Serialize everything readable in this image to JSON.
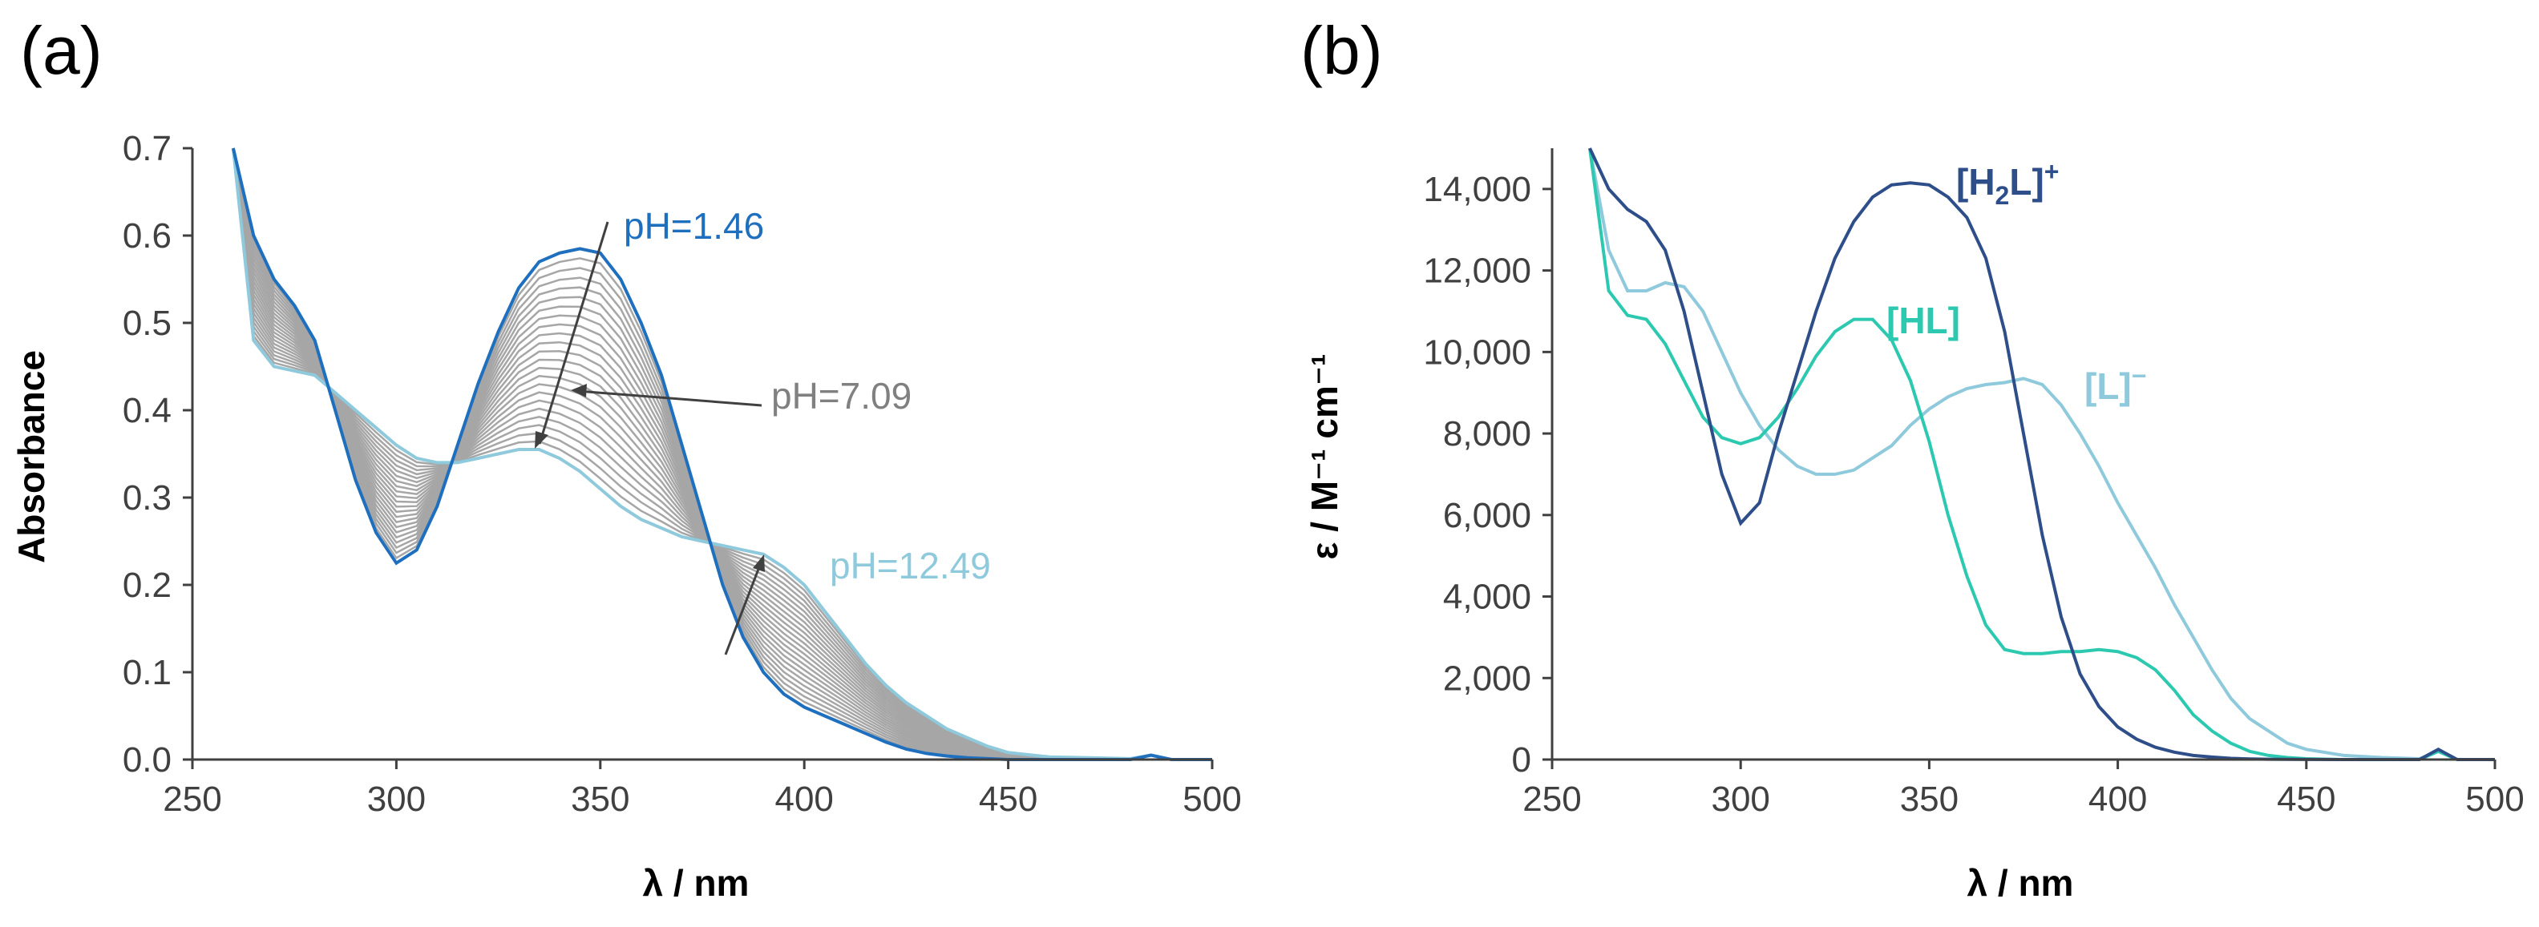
{
  "colors": {
    "ph146": "#1f6fbf",
    "ph1249": "#8ec9dc",
    "grey": "#a6a6a6",
    "greyText": "#808080",
    "h2l": "#2e4e8a",
    "hl": "#2cc9b0",
    "l": "#8ec9dc",
    "axis": "#404040"
  },
  "chart_data": [
    {
      "panel_label": "(a)",
      "type": "line",
      "title": "",
      "xlabel": "λ / nm",
      "ylabel": "Absorbance",
      "xlim": [
        250,
        500
      ],
      "ylim": [
        0,
        0.7
      ],
      "x_ticks": [
        250,
        300,
        350,
        400,
        450,
        500
      ],
      "x_tick_labels": [
        "250",
        "300",
        "350",
        "400",
        "450",
        "500"
      ],
      "y_ticks": [
        0,
        0.1,
        0.2,
        0.3,
        0.4,
        0.5,
        0.6,
        0.7
      ],
      "y_tick_labels": [
        "0.0",
        "0.1",
        "0.2",
        "0.3",
        "0.4",
        "0.5",
        "0.6",
        "0.7"
      ],
      "grid": false,
      "annotations": [
        {
          "text": "pH=1.46",
          "color": "#1f6fbf"
        },
        {
          "text": "pH=7.09",
          "color": "#808080"
        },
        {
          "text": "pH=12.49",
          "color": "#8ec9dc"
        }
      ],
      "series": [
        {
          "name": "pH=1.46",
          "x": [
            260,
            265,
            270,
            275,
            280,
            285,
            290,
            295,
            300,
            305,
            310,
            315,
            320,
            325,
            330,
            335,
            340,
            345,
            350,
            355,
            360,
            365,
            370,
            375,
            380,
            385,
            390,
            395,
            400,
            405,
            410,
            415,
            420,
            425,
            430,
            435,
            440,
            445,
            450,
            460,
            470,
            480,
            485,
            490,
            500
          ],
          "values": [
            0.7,
            0.6,
            0.55,
            0.52,
            0.48,
            0.4,
            0.32,
            0.26,
            0.225,
            0.24,
            0.29,
            0.36,
            0.43,
            0.49,
            0.54,
            0.57,
            0.58,
            0.585,
            0.58,
            0.55,
            0.5,
            0.44,
            0.36,
            0.28,
            0.2,
            0.14,
            0.1,
            0.075,
            0.06,
            0.05,
            0.04,
            0.03,
            0.02,
            0.012,
            0.007,
            0.004,
            0.002,
            0.001,
            0,
            0,
            0,
            0,
            0.005,
            0,
            0
          ]
        },
        {
          "name": "pH=12.49",
          "x": [
            260,
            265,
            270,
            275,
            280,
            285,
            290,
            295,
            300,
            305,
            310,
            315,
            320,
            325,
            330,
            335,
            340,
            345,
            350,
            355,
            360,
            365,
            370,
            375,
            380,
            385,
            390,
            395,
            400,
            405,
            410,
            415,
            420,
            425,
            430,
            435,
            440,
            445,
            450,
            460,
            470,
            480,
            485,
            490,
            500
          ],
          "values": [
            0.7,
            0.48,
            0.45,
            0.445,
            0.44,
            0.42,
            0.4,
            0.38,
            0.36,
            0.345,
            0.34,
            0.34,
            0.345,
            0.35,
            0.355,
            0.355,
            0.345,
            0.33,
            0.31,
            0.29,
            0.275,
            0.265,
            0.255,
            0.25,
            0.245,
            0.24,
            0.235,
            0.22,
            0.2,
            0.17,
            0.14,
            0.11,
            0.085,
            0.065,
            0.05,
            0.035,
            0.025,
            0.015,
            0.008,
            0.003,
            0.002,
            0.001,
            0.005,
            0,
            0
          ]
        }
      ],
      "intermediate_curves": {
        "name": "intermediate pH spectra",
        "count": 22,
        "color": "#a6a6a6"
      }
    },
    {
      "panel_label": "(b)",
      "type": "line",
      "title": "",
      "xlabel": "λ / nm",
      "ylabel": "ε / M⁻¹ cm⁻¹",
      "xlim": [
        250,
        500
      ],
      "ylim": [
        0,
        15000
      ],
      "x_ticks": [
        250,
        300,
        350,
        400,
        450,
        500
      ],
      "x_tick_labels": [
        "250",
        "300",
        "350",
        "400",
        "450",
        "500"
      ],
      "y_ticks": [
        0,
        2000,
        4000,
        6000,
        8000,
        10000,
        12000,
        14000
      ],
      "y_tick_labels": [
        "0",
        "2,000",
        "4,000",
        "6,000",
        "8,000",
        "10,000",
        "12,000",
        "14,000"
      ],
      "grid": false,
      "series": [
        {
          "name": "[H2L]+",
          "label_main": "[H",
          "label_sub": "2",
          "label_tail": "L]",
          "label_sup": "+",
          "color": "#2e4e8a",
          "x": [
            260,
            265,
            270,
            275,
            280,
            285,
            290,
            295,
            300,
            305,
            310,
            315,
            320,
            325,
            330,
            335,
            340,
            345,
            350,
            355,
            360,
            365,
            370,
            375,
            380,
            385,
            390,
            395,
            400,
            405,
            410,
            415,
            420,
            425,
            430,
            435,
            440,
            445,
            450,
            460,
            470,
            480,
            485,
            490,
            500
          ],
          "values": [
            15000,
            14000,
            13500,
            13200,
            12500,
            11000,
            9000,
            7000,
            5800,
            6300,
            8000,
            9500,
            11000,
            12300,
            13200,
            13800,
            14100,
            14150,
            14100,
            13800,
            13300,
            12300,
            10500,
            8000,
            5500,
            3500,
            2100,
            1300,
            800,
            500,
            300,
            180,
            100,
            60,
            30,
            15,
            8,
            4,
            2,
            0,
            0,
            0,
            250,
            0,
            0
          ]
        },
        {
          "name": "[HL]",
          "label_main": "[HL]",
          "color": "#2cc9b0",
          "x": [
            260,
            265,
            270,
            275,
            280,
            285,
            290,
            295,
            300,
            305,
            310,
            315,
            320,
            325,
            330,
            335,
            340,
            345,
            350,
            355,
            360,
            365,
            370,
            375,
            380,
            385,
            390,
            395,
            400,
            405,
            410,
            415,
            420,
            425,
            430,
            435,
            440,
            445,
            450,
            460,
            470,
            480,
            485,
            490,
            500
          ],
          "values": [
            15000,
            11500,
            10900,
            10800,
            10200,
            9300,
            8400,
            7900,
            7750,
            7900,
            8400,
            9100,
            9900,
            10500,
            10800,
            10800,
            10300,
            9300,
            7800,
            6000,
            4500,
            3300,
            2700,
            2600,
            2600,
            2650,
            2650,
            2700,
            2650,
            2500,
            2200,
            1700,
            1100,
            700,
            400,
            200,
            100,
            50,
            20,
            0,
            0,
            0,
            200,
            0,
            0
          ]
        },
        {
          "name": "[L]−",
          "label_main": "[L]",
          "label_sup": "−",
          "color": "#8ec9dc",
          "x": [
            260,
            265,
            270,
            275,
            280,
            285,
            290,
            295,
            300,
            305,
            310,
            315,
            320,
            325,
            330,
            335,
            340,
            345,
            350,
            355,
            360,
            365,
            370,
            375,
            380,
            385,
            390,
            395,
            400,
            405,
            410,
            415,
            420,
            425,
            430,
            435,
            440,
            445,
            450,
            460,
            470,
            480,
            485,
            490,
            500
          ],
          "values": [
            15000,
            12500,
            11500,
            11500,
            11700,
            11600,
            11000,
            10000,
            9000,
            8200,
            7600,
            7200,
            7000,
            7000,
            7100,
            7400,
            7700,
            8200,
            8600,
            8900,
            9100,
            9200,
            9250,
            9350,
            9200,
            8700,
            8000,
            7200,
            6300,
            5500,
            4700,
            3800,
            3000,
            2200,
            1500,
            1000,
            700,
            400,
            250,
            100,
            50,
            20,
            200,
            0,
            0
          ]
        }
      ]
    }
  ]
}
